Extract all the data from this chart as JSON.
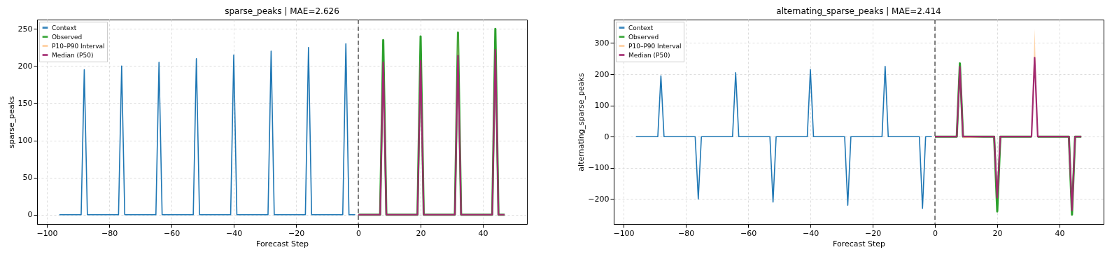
{
  "chart_data": [
    {
      "type": "line",
      "title": "sparse_peaks | MAE=2.626",
      "xlabel": "Forecast Step",
      "ylabel": "sparse_peaks",
      "xlim": [
        -103.15,
        54.15
      ],
      "xticks": [
        -100,
        -80,
        -60,
        -40,
        -20,
        0,
        20,
        40
      ],
      "ylim": [
        -12.5,
        262.5
      ],
      "yticks": [
        0,
        50,
        100,
        150,
        200,
        250
      ],
      "grid": true,
      "legend": "top left",
      "annotations": [
        "P10–P90 Interval"
      ],
      "ref_lines": [
        {
          "axis": "x",
          "value": 0,
          "color": "#555555",
          "line_style": "dashed"
        }
      ],
      "series": [
        {
          "name": "Context",
          "type": "line",
          "color": "#1f77b4",
          "x": [
            -96,
            -89,
            -88,
            -87,
            -77,
            -76,
            -75,
            -65,
            -64,
            -63,
            -53,
            -52,
            -51,
            -41,
            -40,
            -39,
            -29,
            -28,
            -27,
            -17,
            -16,
            -15,
            -5,
            -4,
            -3,
            -1
          ],
          "values": [
            0,
            0,
            195,
            0,
            0,
            200,
            0,
            0,
            205,
            0,
            0,
            210,
            0,
            0,
            215,
            0,
            0,
            220,
            0,
            0,
            225,
            0,
            0,
            230,
            0,
            0
          ]
        },
        {
          "name": "Observed",
          "type": "line",
          "color": "#2ca02c",
          "x": [
            0,
            7,
            8,
            9,
            19,
            20,
            21,
            31,
            32,
            33,
            43,
            44,
            45,
            47
          ],
          "values": [
            0,
            0,
            235,
            0,
            0,
            240,
            0,
            0,
            245,
            0,
            0,
            250,
            0,
            0
          ]
        },
        {
          "name": "Median (P50)",
          "type": "line",
          "color": "#a2296f",
          "x": [
            0,
            7,
            8,
            9,
            19,
            20,
            21,
            31,
            32,
            33,
            43,
            44,
            45,
            47
          ],
          "values": [
            0,
            0,
            205,
            0,
            0,
            207,
            0,
            0,
            214,
            0,
            0,
            222,
            0,
            0
          ],
          "lower": [
            0,
            0,
            205,
            0,
            0,
            207,
            0,
            0,
            214,
            0,
            0,
            222,
            0,
            0
          ],
          "upper": [
            0,
            0,
            205,
            0,
            0,
            207,
            0,
            0,
            252,
            0,
            0,
            222,
            0,
            0
          ]
        }
      ]
    },
    {
      "type": "line",
      "title": "alternating_sparse_peaks | MAE=2.414",
      "xlabel": "Forecast Step",
      "ylabel": "alternating_sparse_peaks",
      "xlim": [
        -103.15,
        54.15
      ],
      "xticks": [
        -100,
        -80,
        -60,
        -40,
        -20,
        0,
        20,
        40
      ],
      "ylim": [
        -280,
        375
      ],
      "yticks": [
        -200,
        -100,
        0,
        100,
        200,
        300
      ],
      "grid": true,
      "legend": "top left",
      "annotations": [
        "P10–P90 Interval"
      ],
      "ref_lines": [
        {
          "axis": "x",
          "value": 0,
          "color": "#555555",
          "line_style": "dashed"
        }
      ],
      "series": [
        {
          "name": "Context",
          "type": "line",
          "color": "#1f77b4",
          "x": [
            -96,
            -89,
            -88,
            -87,
            -77,
            -76,
            -75,
            -65,
            -64,
            -63,
            -53,
            -52,
            -51,
            -41,
            -40,
            -39,
            -29,
            -28,
            -27,
            -17,
            -16,
            -15,
            -5,
            -4,
            -3,
            -1
          ],
          "values": [
            0,
            0,
            195,
            0,
            0,
            -200,
            0,
            0,
            205,
            0,
            0,
            -210,
            0,
            0,
            215,
            0,
            0,
            -220,
            0,
            0,
            225,
            0,
            0,
            -230,
            0,
            0
          ]
        },
        {
          "name": "Observed",
          "type": "line",
          "color": "#2ca02c",
          "x": [
            0,
            7,
            8,
            9,
            19,
            20,
            21,
            31,
            32,
            33,
            43,
            44,
            45,
            47
          ],
          "values": [
            0,
            0,
            235,
            0,
            0,
            -240,
            0,
            0,
            null,
            0,
            0,
            -250,
            0,
            0
          ]
        },
        {
          "name": "Median (P50)",
          "type": "line",
          "color": "#a2296f",
          "x": [
            0,
            7,
            8,
            9,
            19,
            20,
            21,
            31,
            32,
            33,
            43,
            44,
            45,
            47
          ],
          "values": [
            0,
            0,
            224,
            0,
            0,
            -196,
            0,
            0,
            253,
            0,
            0,
            -236,
            0,
            0
          ],
          "lower": [
            0,
            0,
            224,
            -5,
            0,
            -196,
            0,
            0,
            253,
            0,
            0,
            -236,
            0,
            0
          ],
          "upper": [
            0,
            0,
            224,
            0,
            0,
            -196,
            0,
            0,
            345,
            0,
            0,
            -236,
            0,
            0
          ]
        }
      ]
    }
  ]
}
